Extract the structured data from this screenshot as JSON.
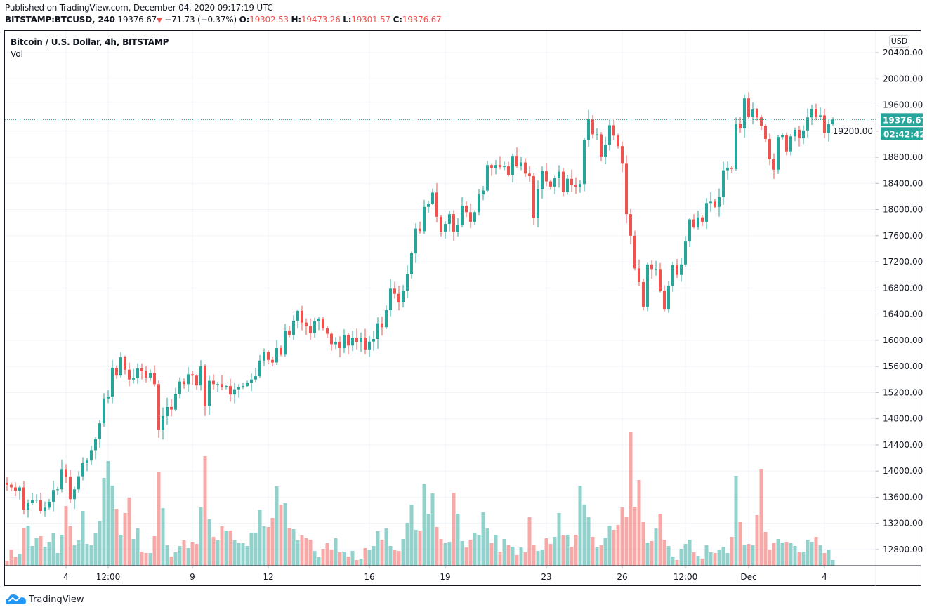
{
  "header": {
    "published": "Published on TradingView.com, December 04, 2020 09:17:19 UTC",
    "symbol": "BITSTAMP:BTCUSD, 240",
    "last": "19376.67",
    "change": "−71.73 (−0.37%)",
    "o_label": "O:",
    "o": "19302.53",
    "h_label": "H:",
    "h": "19473.26",
    "l_label": "L:",
    "l": "19301.57",
    "c_label": "C:",
    "c": "19376.67"
  },
  "legend": {
    "title": "Bitcoin / U.S. Dollar, 4h, BITSTAMP",
    "vol": "Vol"
  },
  "currency": "USD",
  "footer": {
    "brand": "TradingView"
  },
  "colors": {
    "up": "#26a69a",
    "down": "#ef5350",
    "grid": "#f0f3fa"
  },
  "chart_data": {
    "type": "candlestick",
    "title": "Bitcoin / U.S. Dollar, 4h, BITSTAMP",
    "ylim": [
      12600,
      20600
    ],
    "y_ticks": [
      "12800.00",
      "13200.00",
      "13600.00",
      "14000.00",
      "14400.00",
      "14800.00",
      "15200.00",
      "15600.00",
      "16000.00",
      "16400.00",
      "16800.00",
      "17200.00",
      "17600.00",
      "18000.00",
      "18400.00",
      "18800.00",
      "19200.00",
      "19600.00",
      "20000.00",
      "20400.00"
    ],
    "x_ticks": [
      {
        "label": "4",
        "index": 14
      },
      {
        "label": "12:00",
        "index": 24
      },
      {
        "label": "9",
        "index": 44
      },
      {
        "label": "12",
        "index": 62
      },
      {
        "label": "16",
        "index": 86
      },
      {
        "label": "19",
        "index": 104
      },
      {
        "label": "23",
        "index": 128
      },
      {
        "label": "26",
        "index": 146
      },
      {
        "label": "12:00",
        "index": 161
      },
      {
        "label": "Dec",
        "index": 176
      },
      {
        "label": "4",
        "index": 194
      }
    ],
    "last_price": "19376.67",
    "countdown": "02:42:42",
    "first_open": 13820,
    "close": [
      13790,
      13750,
      13700,
      13750,
      13410,
      13510,
      13560,
      13560,
      13390,
      13440,
      13530,
      13710,
      13720,
      14030,
      13910,
      13570,
      13720,
      13920,
      14120,
      14160,
      14320,
      14490,
      14730,
      15110,
      15140,
      15580,
      15460,
      15740,
      15550,
      15400,
      15420,
      15570,
      15530,
      15430,
      15500,
      15330,
      14630,
      14840,
      14980,
      14940,
      15180,
      15370,
      15330,
      15480,
      15460,
      15310,
      15600,
      14990,
      15380,
      15330,
      15330,
      15290,
      15300,
      15170,
      15250,
      15280,
      15300,
      15350,
      15400,
      15450,
      15690,
      15820,
      15700,
      15660,
      15880,
      15780,
      16150,
      16080,
      16300,
      16450,
      16270,
      16220,
      16110,
      16290,
      16330,
      16180,
      16100,
      15940,
      15970,
      15880,
      16080,
      15920,
      16040,
      15970,
      16040,
      15860,
      15980,
      16020,
      16260,
      16200,
      16460,
      16790,
      16710,
      16580,
      16760,
      17010,
      17330,
      17710,
      17670,
      18040,
      18090,
      18260,
      17890,
      17660,
      17780,
      17930,
      17660,
      17770,
      18060,
      17960,
      17810,
      17960,
      18230,
      18290,
      18680,
      18630,
      18680,
      18650,
      18660,
      18530,
      18820,
      18660,
      18720,
      18550,
      18510,
      17870,
      18310,
      18590,
      18430,
      18350,
      18480,
      18580,
      18270,
      18470,
      18370,
      18350,
      18390,
      19060,
      19380,
      19150,
      19150,
      18810,
      18990,
      19290,
      19130,
      18970,
      18710,
      17930,
      17600,
      17100,
      16890,
      16510,
      17160,
      17090,
      17090,
      16760,
      16480,
      16830,
      17150,
      17000,
      17160,
      17510,
      17850,
      17730,
      17880,
      17810,
      18100,
      18120,
      18040,
      18190,
      18600,
      18640,
      18620,
      19310,
      19240,
      19700,
      19420,
      19530,
      19410,
      19280,
      19080,
      18770,
      18610,
      19110,
      19140,
      18890,
      19120,
      19220,
      19090,
      19210,
      19410,
      19540,
      19420,
      19440,
      19170,
      19310,
      19376.67
    ],
    "volume": [
      7,
      23,
      12,
      17,
      54,
      57,
      28,
      39,
      42,
      27,
      34,
      46,
      18,
      44,
      85,
      56,
      29,
      36,
      78,
      31,
      29,
      46,
      64,
      125,
      149,
      114,
      81,
      44,
      75,
      97,
      38,
      53,
      20,
      18,
      18,
      42,
      134,
      82,
      29,
      13,
      19,
      28,
      36,
      25,
      34,
      31,
      83,
      156,
      66,
      41,
      36,
      56,
      50,
      50,
      36,
      32,
      32,
      28,
      47,
      47,
      80,
      56,
      55,
      68,
      113,
      87,
      89,
      54,
      52,
      36,
      43,
      39,
      37,
      21,
      12,
      24,
      32,
      23,
      39,
      19,
      20,
      13,
      21,
      8,
      10,
      25,
      23,
      28,
      49,
      37,
      53,
      28,
      22,
      21,
      38,
      61,
      87,
      51,
      50,
      116,
      74,
      103,
      55,
      38,
      32,
      34,
      104,
      74,
      35,
      26,
      37,
      47,
      44,
      76,
      53,
      32,
      44,
      20,
      38,
      29,
      27,
      15,
      26,
      19,
      69,
      30,
      21,
      23,
      39,
      31,
      41,
      75,
      43,
      44,
      27,
      44,
      114,
      87,
      69,
      41,
      26,
      29,
      40,
      57,
      51,
      58,
      83,
      70,
      190,
      84,
      122,
      62,
      33,
      35,
      53,
      74,
      37,
      28,
      13,
      8,
      24,
      31,
      37,
      19,
      14,
      10,
      29,
      19,
      18,
      22,
      27,
      18,
      41,
      128,
      62,
      30,
      31,
      29,
      72,
      138,
      48,
      23,
      33,
      38,
      33,
      34,
      32,
      28,
      19,
      20,
      37,
      34,
      41,
      29,
      18,
      23,
      8
    ]
  }
}
